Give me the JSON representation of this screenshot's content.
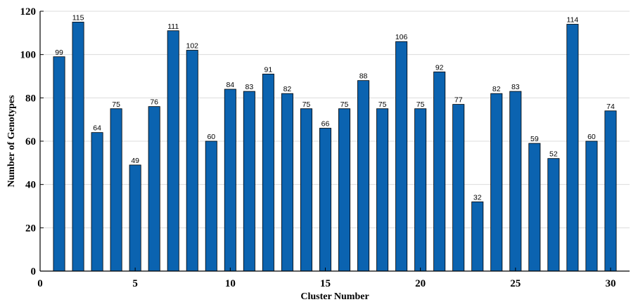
{
  "chart_data": {
    "type": "bar",
    "title": "",
    "xlabel": "Cluster Number",
    "ylabel": "Number of Genotypes",
    "x": [
      1,
      2,
      3,
      4,
      5,
      6,
      7,
      8,
      9,
      10,
      11,
      12,
      13,
      14,
      15,
      16,
      17,
      18,
      19,
      20,
      21,
      22,
      23,
      24,
      25,
      26,
      27,
      28,
      29,
      30
    ],
    "values": [
      99,
      115,
      64,
      75,
      49,
      76,
      111,
      102,
      60,
      84,
      83,
      91,
      82,
      75,
      66,
      75,
      88,
      75,
      106,
      75,
      92,
      77,
      32,
      82,
      83,
      59,
      52,
      114,
      60,
      74
    ],
    "data_labels": [
      "99",
      "115",
      "64",
      "75",
      "49",
      "76",
      "111",
      "102",
      "60",
      "84",
      "83",
      "91",
      "82",
      "75",
      "66",
      "75",
      "88",
      "75",
      "106",
      "75",
      "92",
      "77",
      "32",
      "82",
      "83",
      "59",
      "52",
      "114",
      "60",
      "74"
    ],
    "xlim": [
      0,
      31
    ],
    "ylim": [
      0,
      120
    ],
    "xticks": [
      "0",
      "5",
      "10",
      "15",
      "20",
      "25",
      "30"
    ],
    "yticks": [
      "0",
      "20",
      "40",
      "60",
      "80",
      "100",
      "120"
    ],
    "grid": "horizontal",
    "bar_color": "#0b63b0",
    "grid_color": "#dcdcdc"
  }
}
